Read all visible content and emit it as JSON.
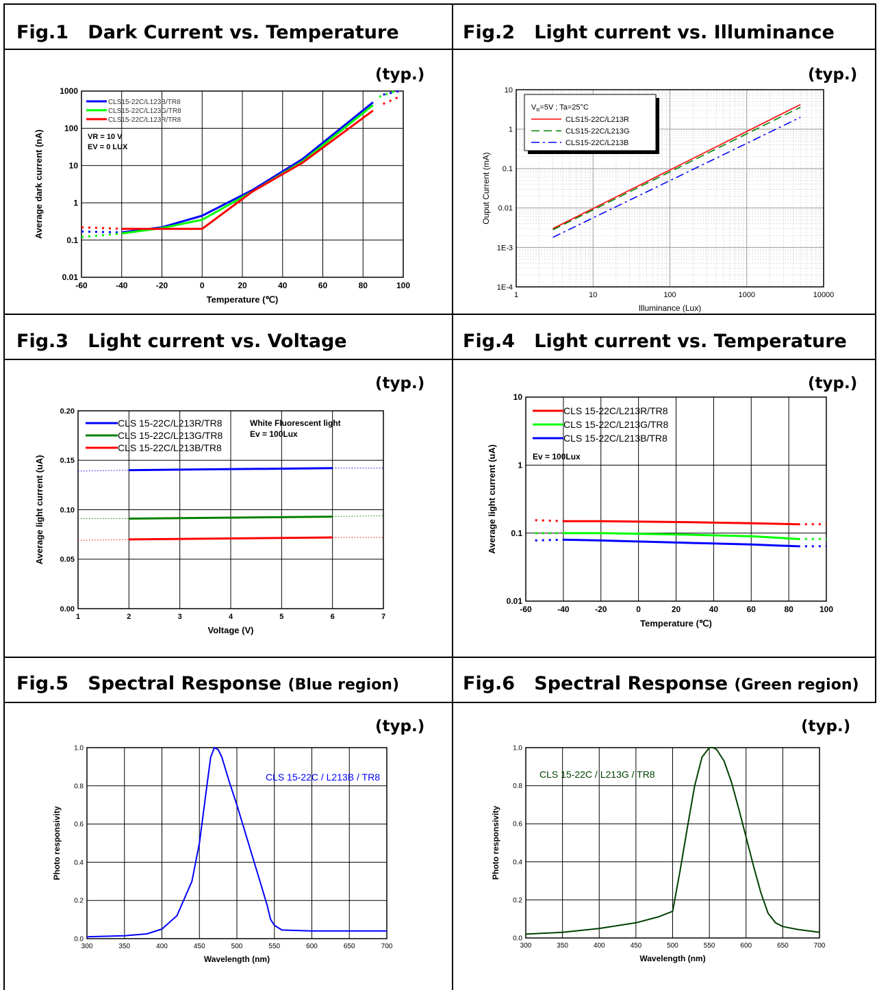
{
  "panels": [
    {
      "fig": "Fig.1",
      "title": "Dark Current vs. Temperature",
      "subtitle": "",
      "typ": "(typ.)"
    },
    {
      "fig": "Fig.2",
      "title": "Light current vs. Illuminance",
      "subtitle": "",
      "typ": "(typ.)"
    },
    {
      "fig": "Fig.3",
      "title": "Light current vs. Voltage",
      "subtitle": "",
      "typ": "(typ.)"
    },
    {
      "fig": "Fig.4",
      "title": "Light current vs. Temperature",
      "subtitle": "",
      "typ": "(typ.)"
    },
    {
      "fig": "Fig.5",
      "title": "Spectral Response",
      "subtitle": "(Blue region)",
      "typ": "(typ.)"
    },
    {
      "fig": "Fig.6",
      "title": "Spectral Response",
      "subtitle": "(Green region)",
      "typ": "(typ.)"
    }
  ],
  "chart_data": [
    {
      "type": "line",
      "xlabel": "Temperature (℃)",
      "ylabel": "Average dark current (nA)",
      "yscale": "log",
      "xlim": [
        -60,
        100
      ],
      "ylim": [
        0.01,
        1000
      ],
      "xticks": [
        "-60",
        "-40",
        "-20",
        "0",
        "20",
        "40",
        "60",
        "80",
        "100"
      ],
      "yticks": [
        "0.01",
        "0.1",
        "1",
        "10",
        "100",
        "1000"
      ],
      "grid": true,
      "legend_position": "top-left",
      "annotations": [
        "VR = 10 V",
        "EV = 0 LUX"
      ],
      "series": [
        {
          "name": "CLS15-22C/L123B/TR8",
          "color": "#0000ff",
          "x": [
            -40,
            -20,
            0,
            25,
            50,
            85
          ],
          "y": [
            0.16,
            0.22,
            0.45,
            2.2,
            15,
            500
          ],
          "extrap_x": [
            -60,
            -40,
            90,
            98
          ],
          "extrap_y": [
            0.17,
            0.16,
            800,
            1000
          ]
        },
        {
          "name": "CLS15-22C/L123G/TR8",
          "color": "#00ff00",
          "x": [
            -40,
            -20,
            0,
            25,
            50,
            85
          ],
          "y": [
            0.15,
            0.21,
            0.35,
            2.0,
            13,
            420
          ],
          "extrap_x": [
            -60,
            -40,
            88,
            96
          ],
          "extrap_y": [
            0.12,
            0.15,
            700,
            1000
          ]
        },
        {
          "name": "CLS15-22C/L123R/TR8",
          "color": "#ff0000",
          "x": [
            -40,
            0,
            25,
            50,
            85
          ],
          "y": [
            0.2,
            0.2,
            2.0,
            12,
            300
          ],
          "extrap_x": [
            -60,
            -40,
            90,
            98
          ],
          "extrap_y": [
            0.22,
            0.2,
            450,
            700
          ]
        }
      ]
    },
    {
      "type": "line",
      "xlabel": "Illuminance (Lux)",
      "ylabel": "Ouput Current (mA)",
      "xscale": "log",
      "yscale": "log",
      "xlim": [
        1,
        10000
      ],
      "ylim": [
        0.0001,
        10
      ],
      "xticks": [
        "1",
        "10",
        "100",
        "1000",
        "10000"
      ],
      "yticks": [
        "1E-4",
        "1E-3",
        "0.01",
        "0.1",
        "1",
        "10"
      ],
      "grid": true,
      "legend_position": "top-left",
      "legend_title": "V",
      "legend_title_sub": "R",
      "legend_title_rest": "=5V ; Ta=25°C",
      "series": [
        {
          "name": "CLS15-22C/L213R",
          "color": "#ff0000",
          "dash": "",
          "x": [
            3,
            5000
          ],
          "y": [
            0.003,
            4.2
          ]
        },
        {
          "name": "CLS15-22C/L213G",
          "color": "#008000",
          "dash": "12 6",
          "x": [
            3,
            5000
          ],
          "y": [
            0.0028,
            3.6
          ]
        },
        {
          "name": "CLS15-22C/L213B",
          "color": "#0000ff",
          "dash": "12 5 3 5",
          "x": [
            3,
            5000
          ],
          "y": [
            0.0018,
            2.0
          ]
        }
      ]
    },
    {
      "type": "line",
      "xlabel": "Voltage (V)",
      "ylabel": "Average light current (uA)",
      "xlim": [
        1,
        7
      ],
      "ylim": [
        0,
        0.2
      ],
      "xticks": [
        "1",
        "2",
        "3",
        "4",
        "5",
        "6",
        "7"
      ],
      "yticks": [
        "0.00",
        "0.05",
        "0.10",
        "0.15",
        "0.20"
      ],
      "grid": true,
      "legend_position": "top-left",
      "annotations": [
        "White Fluorescent light",
        "Ev = 100Lux"
      ],
      "series": [
        {
          "name": "CLS 15-22C/L213R/TR8",
          "color": "#0000ff",
          "x": [
            2,
            6
          ],
          "y": [
            0.14,
            0.142
          ],
          "extrap_left": [
            1,
            0.139
          ],
          "extrap_right": [
            7,
            0.142
          ]
        },
        {
          "name": "CLS 15-22C/L213G/TR8",
          "color": "#008000",
          "x": [
            2,
            6
          ],
          "y": [
            0.091,
            0.093
          ],
          "extrap_left": [
            1,
            0.091
          ],
          "extrap_right": [
            7,
            0.094
          ]
        },
        {
          "name": "CLS 15-22C/L213B/TR8",
          "color": "#ff0000",
          "x": [
            2,
            6
          ],
          "y": [
            0.07,
            0.072
          ],
          "extrap_left": [
            1,
            0.069
          ],
          "extrap_right": [
            7,
            0.072
          ]
        }
      ]
    },
    {
      "type": "line",
      "xlabel": "Temperature (℃)",
      "ylabel": "Average light current (uA)",
      "yscale": "log",
      "xlim": [
        -60,
        100
      ],
      "ylim": [
        0.01,
        10
      ],
      "xticks": [
        "-60",
        "-40",
        "-20",
        "0",
        "20",
        "40",
        "60",
        "80",
        "100"
      ],
      "yticks": [
        "0.01",
        "0.1",
        "1",
        "10"
      ],
      "grid": true,
      "legend_position": "top-left",
      "annotations": [
        "Ev = 100Lux"
      ],
      "series": [
        {
          "name": "CLS 15-22C/L213R/TR8",
          "color": "#ff0000",
          "x": [
            -40,
            -20,
            25,
            60,
            85
          ],
          "y": [
            0.15,
            0.15,
            0.145,
            0.14,
            0.135
          ],
          "extrap_left": [
            -55,
            0.155
          ],
          "extrap_right": [
            100,
            0.135
          ]
        },
        {
          "name": "CLS 15-22C/L213G/TR8",
          "color": "#00ff00",
          "x": [
            -40,
            -20,
            25,
            60,
            85
          ],
          "y": [
            0.1,
            0.1,
            0.095,
            0.09,
            0.082
          ],
          "extrap_left": [
            -55,
            0.1
          ],
          "extrap_right": [
            100,
            0.082
          ]
        },
        {
          "name": "CLS 15-22C/L213B/TR8",
          "color": "#0000ff",
          "x": [
            -40,
            -20,
            25,
            60,
            85
          ],
          "y": [
            0.08,
            0.078,
            0.072,
            0.068,
            0.064
          ],
          "extrap_left": [
            -55,
            0.078
          ],
          "extrap_right": [
            100,
            0.064
          ]
        }
      ]
    },
    {
      "type": "line",
      "xlabel": "Wavelength (nm)",
      "ylabel": "Photo responsivity",
      "xlim": [
        300,
        700
      ],
      "ylim": [
        0,
        1
      ],
      "xticks": [
        "300",
        "350",
        "400",
        "450",
        "500",
        "550",
        "600",
        "650",
        "700"
      ],
      "yticks": [
        "0.0",
        "0.2",
        "0.4",
        "0.6",
        "0.8",
        "1.0"
      ],
      "grid": true,
      "legend_position": "top-right",
      "series": [
        {
          "name": "CLS 15-22C / L213B / TR8",
          "color": "#0000ff",
          "x": [
            300,
            350,
            380,
            400,
            420,
            440,
            450,
            460,
            465,
            470,
            475,
            480,
            490,
            500,
            510,
            520,
            530,
            540,
            545,
            550,
            560,
            600,
            700
          ],
          "y": [
            0.01,
            0.015,
            0.025,
            0.05,
            0.12,
            0.3,
            0.5,
            0.8,
            0.95,
            1.0,
            0.99,
            0.95,
            0.82,
            0.7,
            0.57,
            0.44,
            0.31,
            0.18,
            0.1,
            0.07,
            0.045,
            0.04,
            0.04
          ]
        }
      ]
    },
    {
      "type": "line",
      "xlabel": "Wavelength (nm)",
      "ylabel": "Photo responsivity",
      "xlim": [
        300,
        700
      ],
      "ylim": [
        0,
        1
      ],
      "xticks": [
        "300",
        "350",
        "400",
        "450",
        "500",
        "550",
        "600",
        "650",
        "700"
      ],
      "yticks": [
        "0.0",
        "0.2",
        "0.4",
        "0.6",
        "0.8",
        "1.0"
      ],
      "grid": true,
      "legend_position": "top-left",
      "series": [
        {
          "name": "CLS 15-22C / L213G / TR8",
          "color": "#004000",
          "x": [
            300,
            350,
            400,
            450,
            480,
            500,
            510,
            520,
            530,
            540,
            550,
            555,
            560,
            570,
            580,
            590,
            600,
            610,
            620,
            630,
            640,
            650,
            670,
            700
          ],
          "y": [
            0.02,
            0.03,
            0.05,
            0.08,
            0.11,
            0.14,
            0.35,
            0.58,
            0.8,
            0.95,
            1.0,
            1.0,
            0.99,
            0.93,
            0.82,
            0.68,
            0.53,
            0.38,
            0.24,
            0.13,
            0.08,
            0.06,
            0.045,
            0.03
          ]
        }
      ]
    }
  ]
}
